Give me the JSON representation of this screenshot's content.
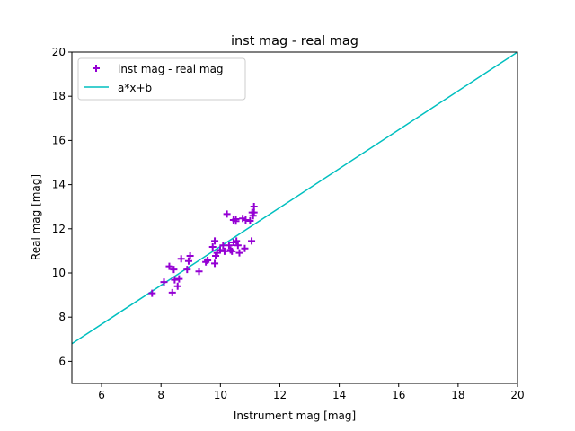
{
  "chart_data": {
    "type": "scatter",
    "title": "inst mag - real mag",
    "xlabel": "Instrument mag [mag]",
    "ylabel": "Real mag [mag]",
    "xlim": [
      5,
      20
    ],
    "ylim": [
      5,
      20
    ],
    "xticks": [
      6,
      8,
      10,
      12,
      14,
      16,
      18,
      20
    ],
    "yticks": [
      6,
      8,
      10,
      12,
      14,
      16,
      18,
      20
    ],
    "grid": false,
    "legend_position": "top-left",
    "series": [
      {
        "name": "inst mag - real mag",
        "kind": "scatter",
        "marker": "+",
        "color": "#9400d3",
        "points": [
          [
            7.7,
            9.08
          ],
          [
            8.38,
            9.11
          ],
          [
            8.1,
            9.59
          ],
          [
            8.28,
            10.3
          ],
          [
            8.43,
            10.16
          ],
          [
            8.46,
            9.69
          ],
          [
            8.61,
            9.73
          ],
          [
            8.56,
            9.4
          ],
          [
            8.68,
            10.64
          ],
          [
            8.93,
            10.54
          ],
          [
            8.98,
            10.77
          ],
          [
            8.88,
            10.16
          ],
          [
            9.28,
            10.07
          ],
          [
            9.51,
            10.5
          ],
          [
            9.57,
            10.57
          ],
          [
            9.81,
            10.43
          ],
          [
            9.81,
            11.45
          ],
          [
            9.74,
            11.18
          ],
          [
            9.84,
            10.77
          ],
          [
            9.89,
            10.91
          ],
          [
            9.99,
            11.04
          ],
          [
            10.09,
            11.25
          ],
          [
            10.14,
            10.98
          ],
          [
            10.22,
            12.67
          ],
          [
            10.29,
            11.25
          ],
          [
            10.34,
            11.04
          ],
          [
            10.39,
            10.98
          ],
          [
            10.44,
            11.38
          ],
          [
            10.54,
            11.45
          ],
          [
            10.64,
            10.91
          ],
          [
            10.59,
            11.25
          ],
          [
            10.82,
            11.11
          ],
          [
            10.52,
            12.44
          ],
          [
            10.52,
            12.35
          ],
          [
            10.75,
            12.47
          ],
          [
            10.85,
            12.4
          ],
          [
            11.0,
            12.36
          ],
          [
            11.05,
            11.45
          ],
          [
            11.13,
            13.01
          ],
          [
            11.07,
            12.74
          ],
          [
            11.13,
            12.74
          ],
          [
            11.1,
            12.59
          ],
          [
            10.44,
            12.4
          ]
        ]
      },
      {
        "name": "a*x+b",
        "kind": "line",
        "color": "#00bfbf",
        "a": 0.88,
        "b": 2.4
      }
    ]
  }
}
